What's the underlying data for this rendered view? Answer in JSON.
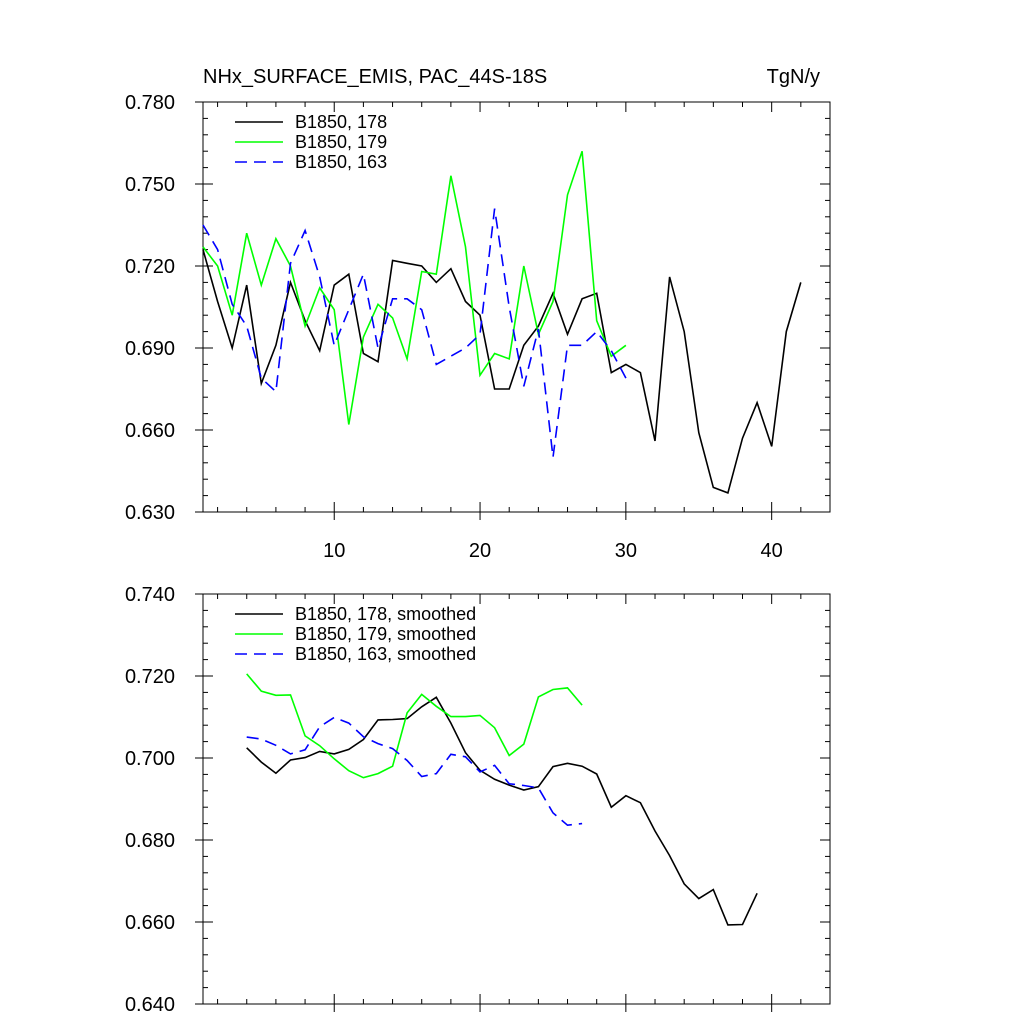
{
  "header": {
    "title": "NHx_SURFACE_EMIS, PAC_44S-18S",
    "units": "TgN/y"
  },
  "chart_data": [
    {
      "type": "line",
      "ylim": [
        0.63,
        0.78
      ],
      "xlim": [
        1,
        44
      ],
      "yticks": [
        0.63,
        0.66,
        0.69,
        0.72,
        0.75,
        0.78
      ],
      "ytick_labels": [
        "0.630",
        "0.660",
        "0.690",
        "0.720",
        "0.750",
        "0.780"
      ],
      "xticks": [
        10,
        20,
        30,
        40
      ],
      "xtick_labels": [
        "10",
        "20",
        "30",
        "40"
      ],
      "legend_position": "top-left",
      "series": [
        {
          "name": "B1850, 178",
          "color": "#000000",
          "dash": "solid",
          "x": [
            1,
            2,
            3,
            4,
            5,
            6,
            7,
            8,
            9,
            10,
            11,
            12,
            13,
            14,
            15,
            16,
            17,
            18,
            19,
            20,
            21,
            22,
            23,
            24,
            25,
            26,
            27,
            28,
            29,
            30,
            31,
            32,
            33,
            34,
            35,
            36,
            37,
            38,
            39,
            40,
            41,
            42
          ],
          "y": [
            0.726,
            0.707,
            0.69,
            0.713,
            0.677,
            0.691,
            0.714,
            0.7,
            0.689,
            0.713,
            0.717,
            0.688,
            0.685,
            0.722,
            0.721,
            0.72,
            0.714,
            0.719,
            0.707,
            0.702,
            0.675,
            0.675,
            0.691,
            0.698,
            0.71,
            0.695,
            0.708,
            0.71,
            0.681,
            0.684,
            0.681,
            0.656,
            0.716,
            0.696,
            0.659,
            0.639,
            0.637,
            0.657,
            0.67,
            0.654,
            0.696,
            0.714
          ]
        },
        {
          "name": "B1850, 179",
          "color": "#00ff00",
          "dash": "solid",
          "x": [
            1,
            2,
            3,
            4,
            5,
            6,
            7,
            8,
            9,
            10,
            11,
            12,
            13,
            14,
            15,
            16,
            17,
            18,
            19,
            20,
            21,
            22,
            23,
            24,
            25,
            26,
            27,
            28,
            29,
            30
          ],
          "y": [
            0.727,
            0.72,
            0.702,
            0.732,
            0.713,
            0.73,
            0.72,
            0.698,
            0.712,
            0.704,
            0.662,
            0.694,
            0.706,
            0.701,
            0.686,
            0.718,
            0.717,
            0.753,
            0.727,
            0.68,
            0.688,
            0.686,
            0.72,
            0.695,
            0.707,
            0.746,
            0.762,
            0.7,
            0.687,
            0.691
          ]
        },
        {
          "name": "B1850, 163",
          "color": "#0000ff",
          "dash": "dashed",
          "x": [
            1,
            2,
            3,
            4,
            5,
            6,
            7,
            8,
            9,
            10,
            11,
            12,
            13,
            14,
            15,
            16,
            17,
            18,
            19,
            20,
            21,
            22,
            23,
            24,
            25,
            26,
            27,
            28,
            29,
            30
          ],
          "y": [
            0.735,
            0.726,
            0.706,
            0.698,
            0.679,
            0.674,
            0.721,
            0.733,
            0.716,
            0.691,
            0.704,
            0.717,
            0.69,
            0.708,
            0.708,
            0.704,
            0.684,
            0.687,
            0.69,
            0.695,
            0.741,
            0.705,
            0.676,
            0.697,
            0.65,
            0.691,
            0.691,
            0.696,
            0.689,
            0.679
          ]
        }
      ]
    },
    {
      "type": "line",
      "ylim": [
        0.64,
        0.74
      ],
      "xlim": [
        1,
        44
      ],
      "yticks": [
        0.64,
        0.66,
        0.68,
        0.7,
        0.72,
        0.74
      ],
      "ytick_labels": [
        "0.640",
        "0.660",
        "0.680",
        "0.700",
        "0.720",
        "0.740"
      ],
      "xticks": [
        10,
        20,
        30,
        40
      ],
      "xtick_labels": [
        "",
        "",
        "",
        ""
      ],
      "legend_position": "top-left",
      "series": [
        {
          "name": "B1850, 178, smoothed",
          "color": "#000000",
          "dash": "solid",
          "x": [
            4,
            5,
            6,
            7,
            8,
            9,
            10,
            11,
            12,
            13,
            14,
            15,
            16,
            17,
            18,
            19,
            20,
            21,
            22,
            23,
            24,
            25,
            26,
            27,
            28,
            29,
            30,
            31,
            32,
            33,
            34,
            35,
            36,
            37,
            38,
            39
          ],
          "y": [
            0.7025,
            0.699,
            0.6963,
            0.6995,
            0.7001,
            0.7016,
            0.701,
            0.7021,
            0.7045,
            0.7093,
            0.7094,
            0.7096,
            0.7125,
            0.7148,
            0.7085,
            0.7013,
            0.697,
            0.6948,
            0.6934,
            0.6922,
            0.693,
            0.6979,
            0.6987,
            0.698,
            0.6961,
            0.688,
            0.6908,
            0.6891,
            0.6822,
            0.6762,
            0.6693,
            0.6657,
            0.6679,
            0.6593,
            0.6594,
            0.667
          ]
        },
        {
          "name": "B1850, 179, smoothed",
          "color": "#00ff00",
          "dash": "solid",
          "x": [
            4,
            5,
            6,
            7,
            8,
            9,
            10,
            11,
            12,
            13,
            14,
            15,
            16,
            17,
            18,
            19,
            20,
            21,
            22,
            23,
            24,
            25,
            26,
            27
          ],
          "y": [
            0.7205,
            0.7163,
            0.7153,
            0.7154,
            0.7054,
            0.703,
            0.6998,
            0.6969,
            0.6952,
            0.6962,
            0.698,
            0.711,
            0.7155,
            0.7126,
            0.7101,
            0.7101,
            0.7104,
            0.7074,
            0.7006,
            0.7034,
            0.7149,
            0.7167,
            0.7171,
            0.7129
          ]
        },
        {
          "name": "B1850, 163, smoothed",
          "color": "#0000ff",
          "dash": "dashed",
          "x": [
            4,
            5,
            6,
            7,
            8,
            9,
            10,
            11,
            12,
            13,
            14,
            15,
            16,
            17,
            18,
            19,
            20,
            21,
            22,
            23,
            24,
            25,
            26,
            27
          ],
          "y": [
            0.7051,
            0.7046,
            0.7031,
            0.701,
            0.702,
            0.7076,
            0.7099,
            0.7085,
            0.7052,
            0.7035,
            0.7023,
            0.6994,
            0.6955,
            0.6962,
            0.7009,
            0.7003,
            0.6966,
            0.6982,
            0.6937,
            0.6933,
            0.6927,
            0.6866,
            0.6836,
            0.684
          ]
        }
      ]
    }
  ]
}
